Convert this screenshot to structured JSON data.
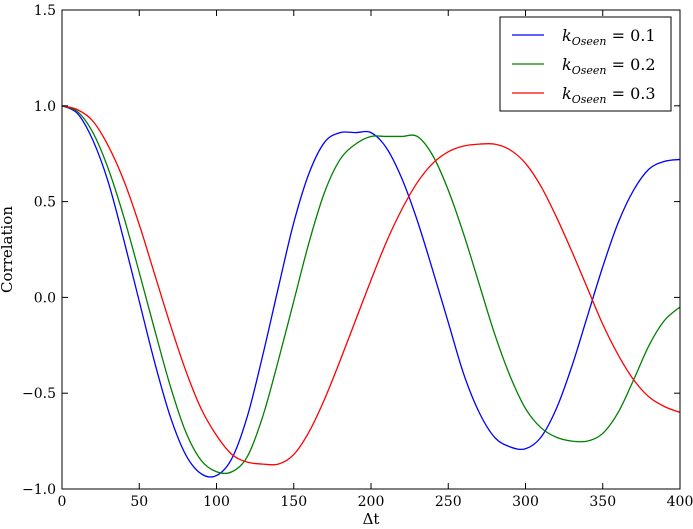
{
  "chart_data": {
    "type": "line",
    "title": "",
    "xlabel": "Δt",
    "ylabel": "Correlation",
    "xlim": [
      0,
      400
    ],
    "ylim": [
      -1.0,
      1.5
    ],
    "xticks": [
      0,
      50,
      100,
      150,
      200,
      250,
      300,
      350,
      400
    ],
    "xtick_labels": [
      "0",
      "50",
      "100",
      "150",
      "200",
      "250",
      "300",
      "350",
      "400"
    ],
    "yticks": [
      -1.0,
      -0.5,
      0.0,
      0.5,
      1.0,
      1.5
    ],
    "ytick_labels": [
      "−1.0",
      "−0.5",
      "0.0",
      "0.5",
      "1.0",
      "1.5"
    ],
    "grid": false,
    "legend_position": "top-right",
    "x": [
      0,
      10,
      20,
      30,
      40,
      50,
      60,
      70,
      80,
      90,
      100,
      110,
      120,
      130,
      140,
      150,
      160,
      170,
      180,
      190,
      200,
      210,
      220,
      230,
      240,
      250,
      260,
      270,
      280,
      290,
      300,
      310,
      320,
      330,
      340,
      350,
      360,
      370,
      380,
      390,
      400
    ],
    "series": [
      {
        "name": "k_Oseen = 0.1",
        "label_k": "k",
        "label_sub": "Oseen",
        "label_rest": " = 0.1",
        "color": "#0000ff",
        "values": [
          1.0,
          0.96,
          0.82,
          0.6,
          0.3,
          -0.02,
          -0.34,
          -0.62,
          -0.82,
          -0.92,
          -0.93,
          -0.84,
          -0.62,
          -0.3,
          0.05,
          0.39,
          0.65,
          0.81,
          0.86,
          0.86,
          0.86,
          0.78,
          0.62,
          0.4,
          0.14,
          -0.13,
          -0.4,
          -0.6,
          -0.73,
          -0.78,
          -0.79,
          -0.73,
          -0.58,
          -0.36,
          -0.1,
          0.16,
          0.39,
          0.56,
          0.67,
          0.71,
          0.72
        ]
      },
      {
        "name": "k_Oseen = 0.2",
        "label_k": "k",
        "label_sub": "Oseen",
        "label_rest": " = 0.2",
        "color": "#008000",
        "values": [
          1.0,
          0.97,
          0.86,
          0.67,
          0.42,
          0.13,
          -0.17,
          -0.46,
          -0.7,
          -0.85,
          -0.91,
          -0.91,
          -0.83,
          -0.62,
          -0.33,
          -0.02,
          0.29,
          0.55,
          0.72,
          0.8,
          0.84,
          0.84,
          0.84,
          0.84,
          0.74,
          0.56,
          0.33,
          0.07,
          -0.19,
          -0.41,
          -0.58,
          -0.68,
          -0.73,
          -0.75,
          -0.75,
          -0.71,
          -0.6,
          -0.43,
          -0.25,
          -0.12,
          -0.05
        ]
      },
      {
        "name": "k_Oseen = 0.3",
        "label_k": "k",
        "label_sub": "Oseen",
        "label_rest": " = 0.3",
        "color": "#ff0000",
        "values": [
          1.0,
          0.98,
          0.92,
          0.79,
          0.61,
          0.38,
          0.12,
          -0.14,
          -0.38,
          -0.58,
          -0.72,
          -0.82,
          -0.86,
          -0.87,
          -0.87,
          -0.82,
          -0.7,
          -0.53,
          -0.33,
          -0.12,
          0.09,
          0.29,
          0.46,
          0.6,
          0.7,
          0.76,
          0.79,
          0.8,
          0.8,
          0.77,
          0.7,
          0.58,
          0.42,
          0.24,
          0.05,
          -0.14,
          -0.3,
          -0.43,
          -0.52,
          -0.57,
          -0.6
        ]
      }
    ]
  }
}
